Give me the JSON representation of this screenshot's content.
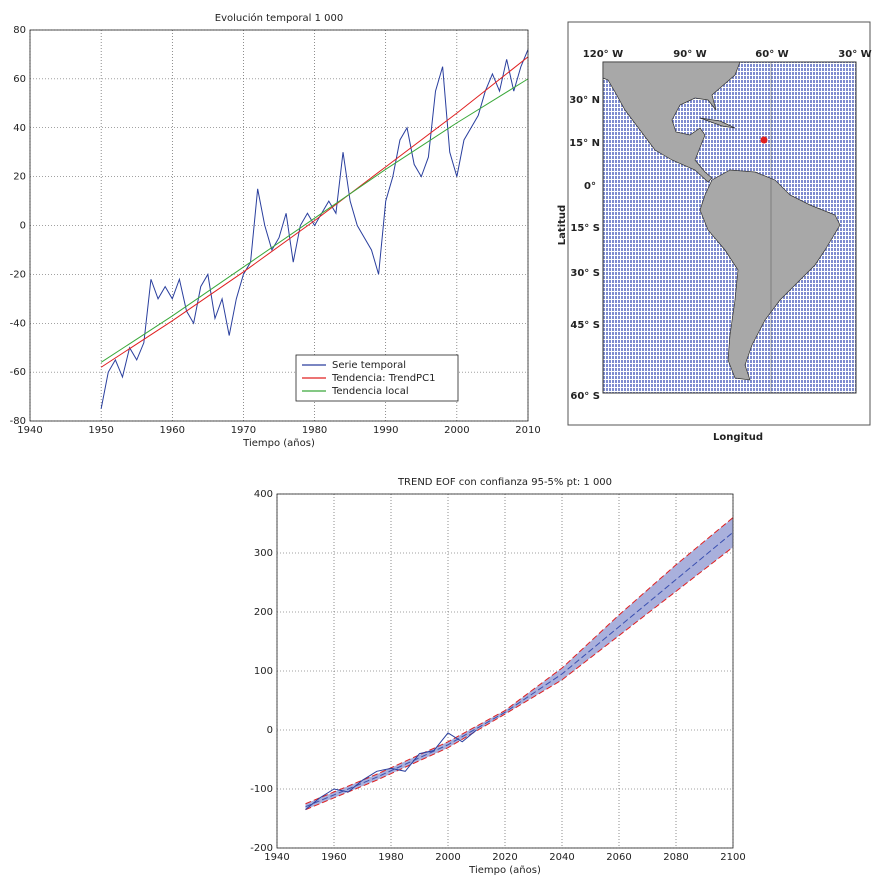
{
  "chart_data": [
    {
      "type": "line",
      "title": "Evolución temporal 1 000",
      "xlabel": "Tiempo (años)",
      "xlim": [
        1940,
        2010
      ],
      "xticks": [
        1940,
        1950,
        1960,
        1970,
        1980,
        1990,
        2000,
        2010
      ],
      "ylim": [
        -80,
        80
      ],
      "yticks": [
        -80,
        -60,
        -40,
        -20,
        0,
        20,
        40,
        60,
        80
      ],
      "grid": true,
      "legend": "lower-right",
      "series": [
        {
          "name": "Serie temporal",
          "color": "#2a3f9e",
          "x": [
            1950,
            1951,
            1952,
            1953,
            1954,
            1955,
            1956,
            1957,
            1958,
            1959,
            1960,
            1961,
            1962,
            1963,
            1964,
            1965,
            1966,
            1967,
            1968,
            1969,
            1970,
            1971,
            1972,
            1973,
            1974,
            1975,
            1976,
            1977,
            1978,
            1979,
            1980,
            1981,
            1982,
            1983,
            1984,
            1985,
            1986,
            1987,
            1988,
            1989,
            1990,
            1991,
            1992,
            1993,
            1994,
            1995,
            1996,
            1997,
            1998,
            1999,
            2000,
            2001,
            2002,
            2003,
            2004,
            2005,
            2006,
            2007,
            2008,
            2009,
            2010
          ],
          "values": [
            -75,
            -60,
            -55,
            -62,
            -50,
            -55,
            -48,
            -22,
            -30,
            -25,
            -30,
            -22,
            -35,
            -40,
            -25,
            -20,
            -38,
            -30,
            -45,
            -30,
            -20,
            -15,
            15,
            0,
            -10,
            -5,
            5,
            -15,
            0,
            5,
            0,
            5,
            10,
            5,
            30,
            10,
            0,
            -5,
            -10,
            -20,
            10,
            20,
            35,
            40,
            25,
            20,
            28,
            55,
            65,
            30,
            20,
            35,
            40,
            45,
            55,
            62,
            55,
            68,
            55,
            65,
            72
          ]
        },
        {
          "name": "Tendencia: TrendPC1",
          "color": "#e02020",
          "x": [
            1950,
            1960,
            1970,
            1980,
            1990,
            2000,
            2010
          ],
          "values": [
            -58,
            -39,
            -19,
            2,
            24,
            46,
            69
          ]
        },
        {
          "name": "Tendencia local",
          "color": "#3aa83a",
          "x": [
            1950,
            1960,
            1970,
            1980,
            1990,
            2000,
            2010
          ],
          "values": [
            -56,
            -37,
            -17,
            3,
            23,
            42,
            60
          ]
        }
      ]
    },
    {
      "type": "line",
      "title": "TREND EOF con confianza 95-5% pt: 1 000",
      "xlabel": "Tiempo (años)",
      "xlim": [
        1940,
        2100
      ],
      "xticks": [
        1940,
        1960,
        1980,
        2000,
        2020,
        2040,
        2060,
        2080,
        2100
      ],
      "ylim": [
        -200,
        400
      ],
      "yticks": [
        -200,
        -100,
        0,
        100,
        200,
        300,
        400
      ],
      "grid": true,
      "fill_between": [
        2,
        3
      ],
      "band_color": "#a9b0dc",
      "series": [
        {
          "color": "#2a3f9e",
          "style": "solid",
          "x": [
            1950,
            1955,
            1960,
            1965,
            1970,
            1975,
            1980,
            1985,
            1990,
            1995,
            2000,
            2005,
            2010
          ],
          "values": [
            -135,
            -115,
            -100,
            -105,
            -85,
            -70,
            -65,
            -70,
            -40,
            -35,
            -5,
            -20,
            0
          ]
        },
        {
          "color": "#3a4fb0",
          "style": "dashed",
          "x": [
            1950,
            1975,
            2000,
            2020,
            2040,
            2060,
            2080,
            2100
          ],
          "values": [
            -130,
            -80,
            -25,
            30,
            95,
            175,
            255,
            335
          ]
        },
        {
          "color": "#e02020",
          "style": "dashed",
          "x": [
            1950,
            1975,
            2000,
            2020,
            2040,
            2060,
            2080,
            2100
          ],
          "values": [
            -125,
            -75,
            -20,
            33,
            105,
            195,
            280,
            360
          ]
        },
        {
          "color": "#e02020",
          "style": "dashed",
          "x": [
            1950,
            1975,
            2000,
            2020,
            2040,
            2060,
            2080,
            2100
          ],
          "values": [
            -135,
            -85,
            -30,
            27,
            85,
            160,
            235,
            310
          ]
        }
      ]
    }
  ],
  "map": {
    "xlabel": "Longitud",
    "ylabel": "Latitud",
    "lon_labels": [
      "120° W",
      "90° W",
      "60° W",
      "30° W"
    ],
    "lat_labels": [
      "30° N",
      "15° N",
      "0°",
      "15° S",
      "30° S",
      "45° S",
      "60° S"
    ]
  }
}
